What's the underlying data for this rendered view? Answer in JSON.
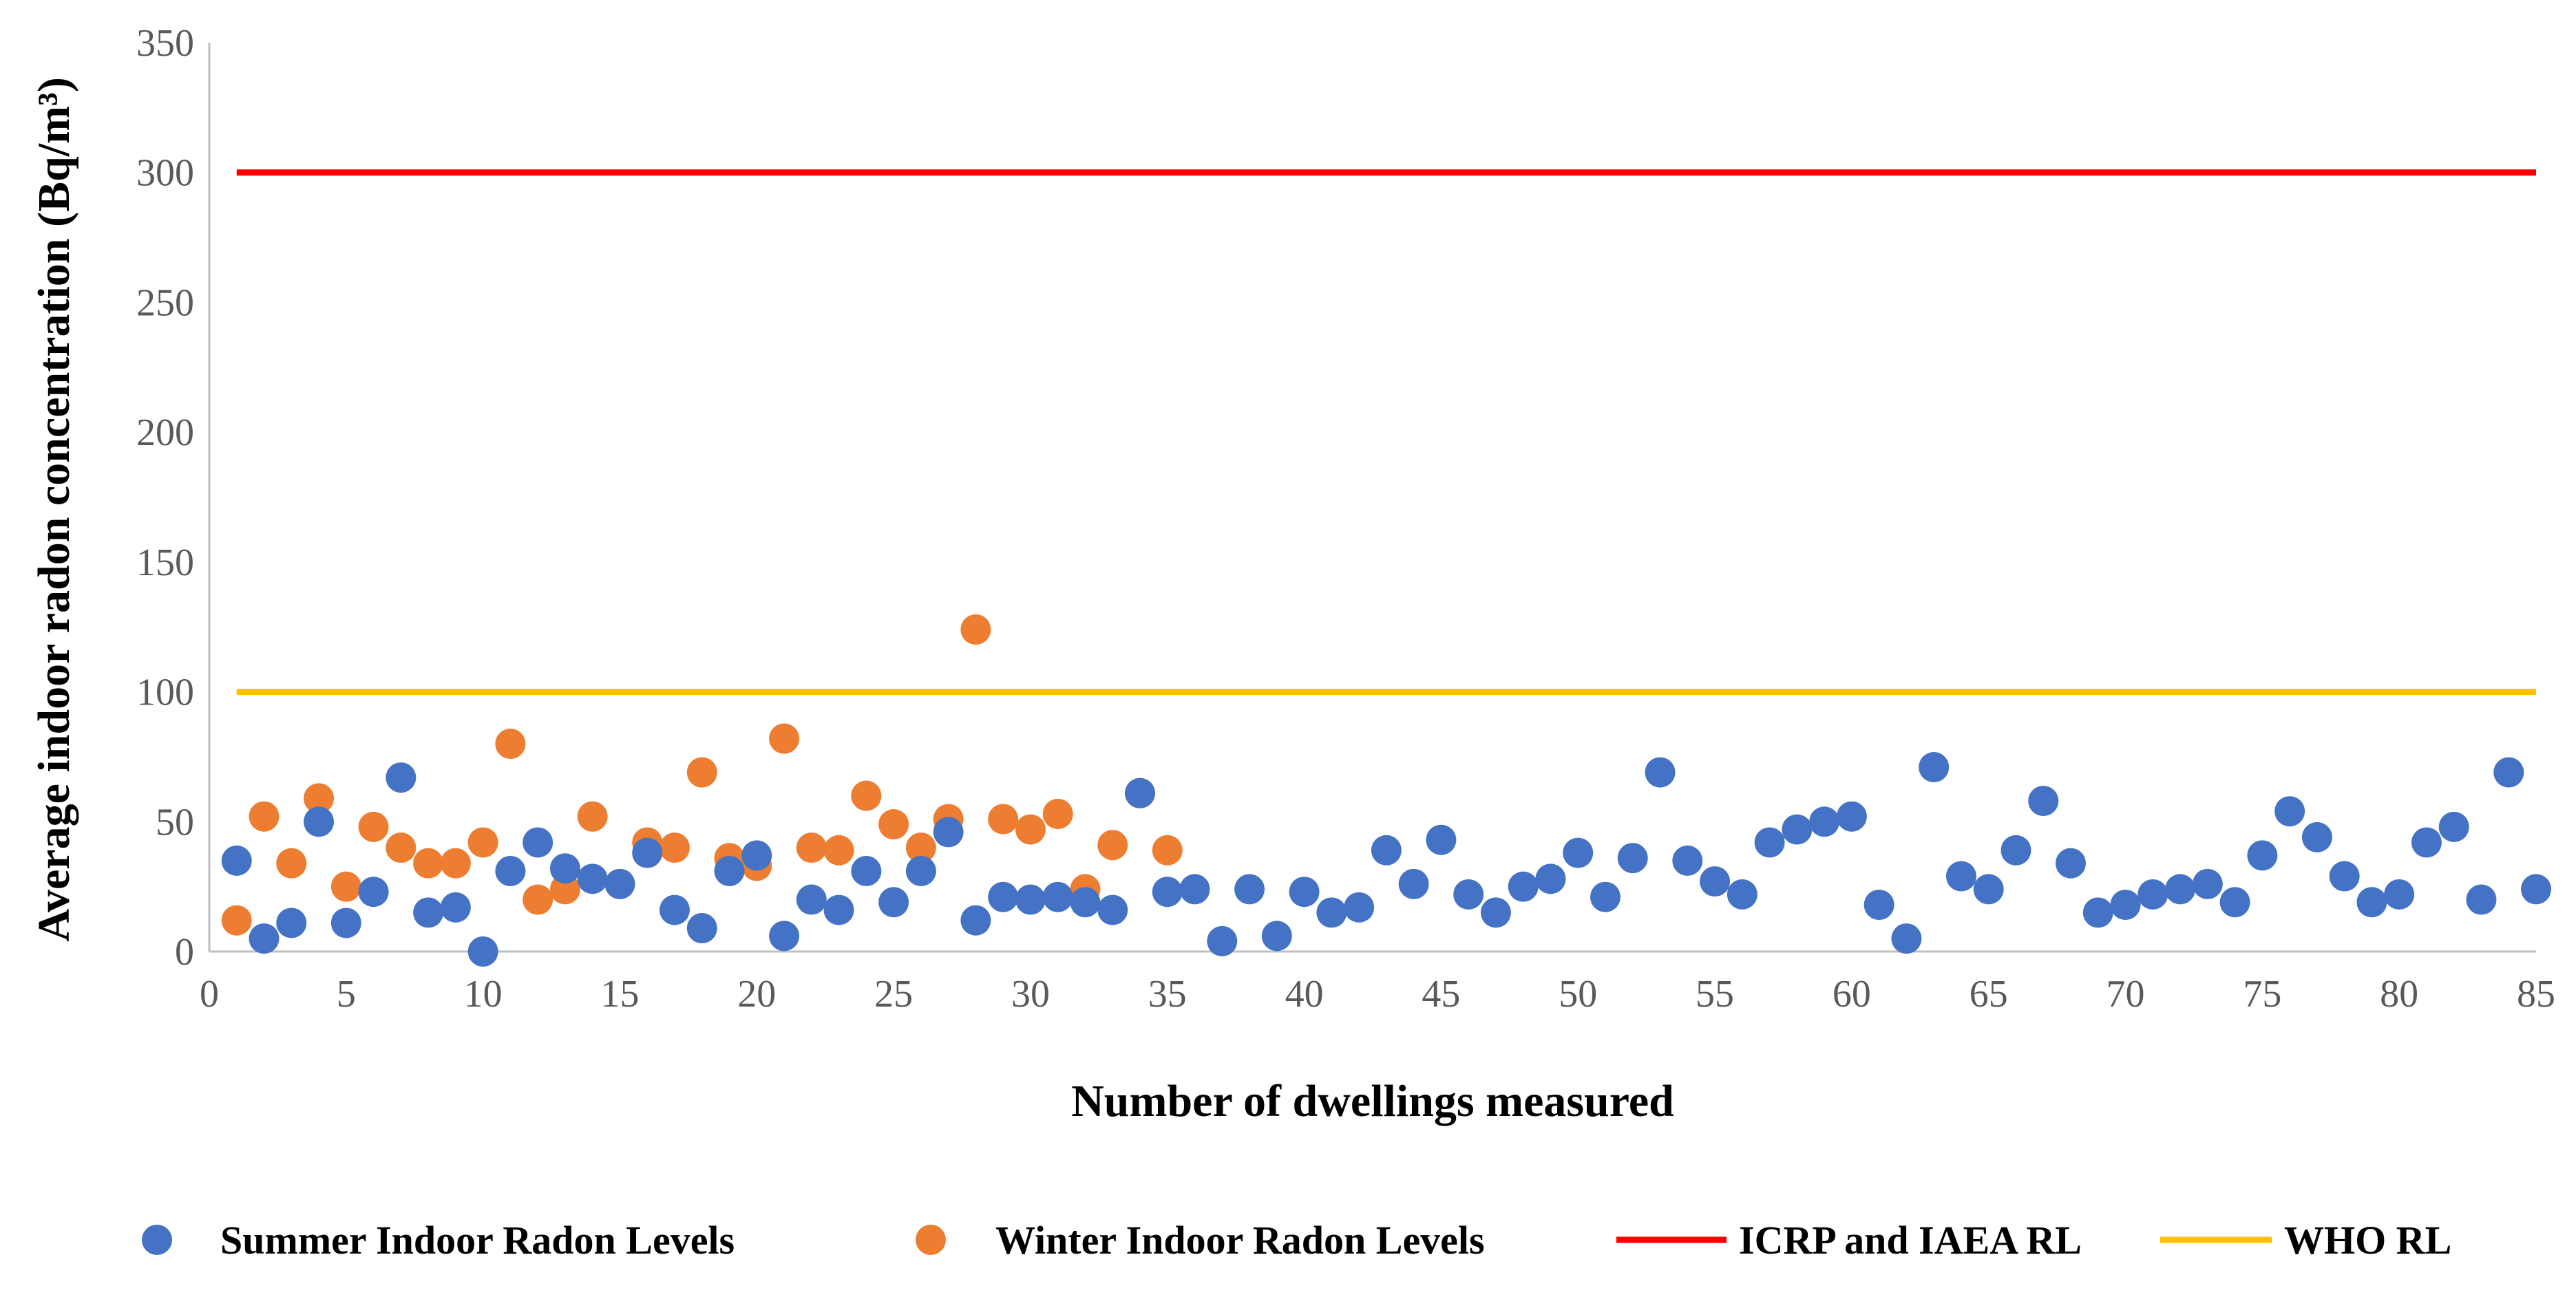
{
  "colors": {
    "summer": "#4472C4",
    "winter": "#ED7D31",
    "icrp": "#FF0000",
    "who": "#FFC000",
    "axis": "#BFBFBF",
    "tick_text": "#595959"
  },
  "chart_data": {
    "type": "scatter",
    "title": "",
    "xlabel": "Number of dwellings measured",
    "ylabel": "Average indoor radon concentration (Bq/m³)",
    "xlim": [
      0,
      85
    ],
    "ylim": [
      0,
      350
    ],
    "xticks": [
      0,
      5,
      10,
      15,
      20,
      25,
      30,
      35,
      40,
      45,
      50,
      55,
      60,
      65,
      70,
      75,
      80,
      85
    ],
    "yticks": [
      0,
      50,
      100,
      150,
      200,
      250,
      300,
      350
    ],
    "grid": false,
    "legend_position": "bottom",
    "series": [
      {
        "name": "Summer Indoor Radon Levels",
        "kind": "scatter",
        "x": [
          1,
          2,
          3,
          4,
          5,
          6,
          7,
          8,
          9,
          10,
          11,
          12,
          13,
          14,
          15,
          16,
          17,
          18,
          19,
          20,
          21,
          22,
          23,
          24,
          25,
          26,
          27,
          28,
          29,
          30,
          31,
          32,
          33,
          34,
          35,
          36,
          37,
          38,
          39,
          40,
          41,
          42,
          43,
          44,
          45,
          46,
          47,
          48,
          49,
          50,
          51,
          52,
          53,
          54,
          55,
          56,
          57,
          58,
          59,
          60,
          61,
          62,
          63,
          64,
          65,
          66,
          67,
          68,
          69,
          70,
          71,
          72,
          73,
          74,
          75,
          76,
          77,
          78,
          79,
          80,
          81,
          82,
          83,
          84,
          85
        ],
        "y": [
          35,
          5,
          11,
          50,
          11,
          23,
          67,
          15,
          17,
          0,
          31,
          42,
          32,
          28,
          26,
          38,
          16,
          9,
          31,
          37,
          6,
          20,
          16,
          31,
          19,
          31,
          46,
          12,
          21,
          20,
          21,
          19,
          16,
          61,
          23,
          24,
          4,
          24,
          6,
          23,
          15,
          17,
          39,
          26,
          43,
          22,
          15,
          25,
          28,
          38,
          21,
          36,
          69,
          35,
          27,
          22,
          42,
          47,
          50,
          52,
          18,
          5,
          71,
          29,
          24,
          39,
          58,
          34,
          15,
          18,
          22,
          24,
          26,
          19,
          37,
          54,
          44,
          29,
          19,
          22,
          42,
          48,
          20,
          69,
          24
        ]
      },
      {
        "name": "Winter Indoor Radon Levels",
        "kind": "scatter",
        "x": [
          1,
          2,
          3,
          4,
          5,
          6,
          7,
          8,
          9,
          10,
          11,
          12,
          13,
          14,
          15,
          16,
          17,
          18,
          19,
          20,
          21,
          22,
          23,
          24,
          25,
          26,
          27,
          28,
          29,
          30,
          31,
          32,
          33,
          34,
          35
        ],
        "y": [
          12,
          52,
          34,
          59,
          25,
          48,
          40,
          34,
          34,
          42,
          80,
          20,
          24,
          52,
          26,
          42,
          40,
          69,
          36,
          33,
          82,
          40,
          39,
          60,
          49,
          40,
          51,
          124,
          51,
          47,
          53,
          24,
          41,
          61,
          39
        ]
      },
      {
        "name": "ICRP and IAEA RL",
        "kind": "line",
        "x": [
          1,
          85
        ],
        "y": [
          300,
          300
        ]
      },
      {
        "name": "WHO RL",
        "kind": "line",
        "x": [
          1,
          85
        ],
        "y": [
          100,
          100
        ]
      }
    ]
  }
}
